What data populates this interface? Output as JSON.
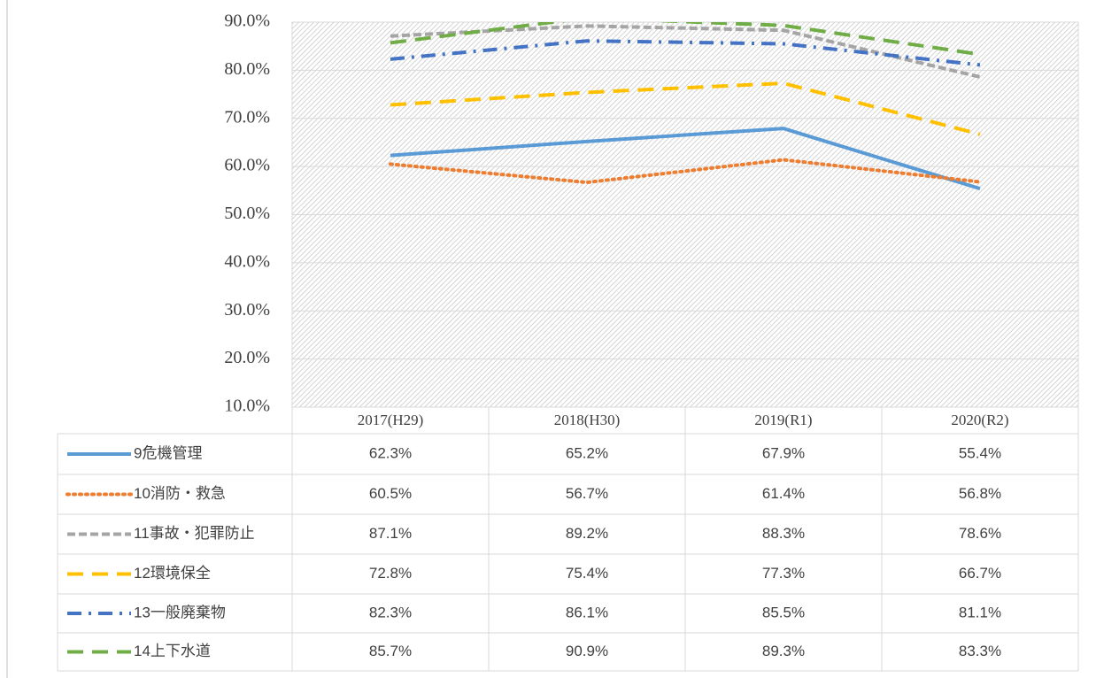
{
  "chart_data": {
    "type": "line",
    "categories": [
      "2017(H29)",
      "2018(H30)",
      "2019(R1)",
      "2020(R2)"
    ],
    "series": [
      {
        "name": "9危機管理",
        "color": "#5b9bd5",
        "dash": "solid",
        "values": [
          62.3,
          65.2,
          67.9,
          55.4
        ],
        "value_labels": [
          "62.3%",
          "65.2%",
          "67.9%",
          "55.4%"
        ]
      },
      {
        "name": "10消防・救急",
        "color": "#ed7d31",
        "dash": "dot",
        "values": [
          60.5,
          56.7,
          61.4,
          56.8
        ],
        "value_labels": [
          "60.5%",
          "56.7%",
          "61.4%",
          "56.8%"
        ]
      },
      {
        "name": "11事故・犯罪防止",
        "color": "#a5a5a5",
        "dash": "dash",
        "values": [
          87.1,
          89.2,
          88.3,
          78.6
        ],
        "value_labels": [
          "87.1%",
          "89.2%",
          "88.3%",
          "78.6%"
        ]
      },
      {
        "name": "12環境保全",
        "color": "#ffc000",
        "dash": "long-dash",
        "values": [
          72.8,
          75.4,
          77.3,
          66.7
        ],
        "value_labels": [
          "72.8%",
          "75.4%",
          "77.3%",
          "66.7%"
        ]
      },
      {
        "name": "13一般廃棄物",
        "color": "#4472c4",
        "dash": "dash-dot",
        "values": [
          82.3,
          86.1,
          85.5,
          81.1
        ],
        "value_labels": [
          "82.3%",
          "86.1%",
          "85.5%",
          "81.1%"
        ]
      },
      {
        "name": "14上下水道",
        "color": "#70ad47",
        "dash": "long-dash",
        "values": [
          85.7,
          90.9,
          89.3,
          83.3
        ],
        "value_labels": [
          "85.7%",
          "90.9%",
          "89.3%",
          "83.3%"
        ]
      }
    ],
    "ylim": [
      10,
      90
    ],
    "yticks": [
      {
        "value": 10,
        "label": "10.0%"
      },
      {
        "value": 20,
        "label": "20.0%"
      },
      {
        "value": 30,
        "label": "30.0%"
      },
      {
        "value": 40,
        "label": "40.0%"
      },
      {
        "value": 50,
        "label": "50.0%"
      },
      {
        "value": 60,
        "label": "60.0%"
      },
      {
        "value": 70,
        "label": "70.0%"
      },
      {
        "value": 80,
        "label": "80.0%"
      },
      {
        "value": 90,
        "label": "90.0%"
      }
    ],
    "grid": true,
    "data_table": true
  }
}
